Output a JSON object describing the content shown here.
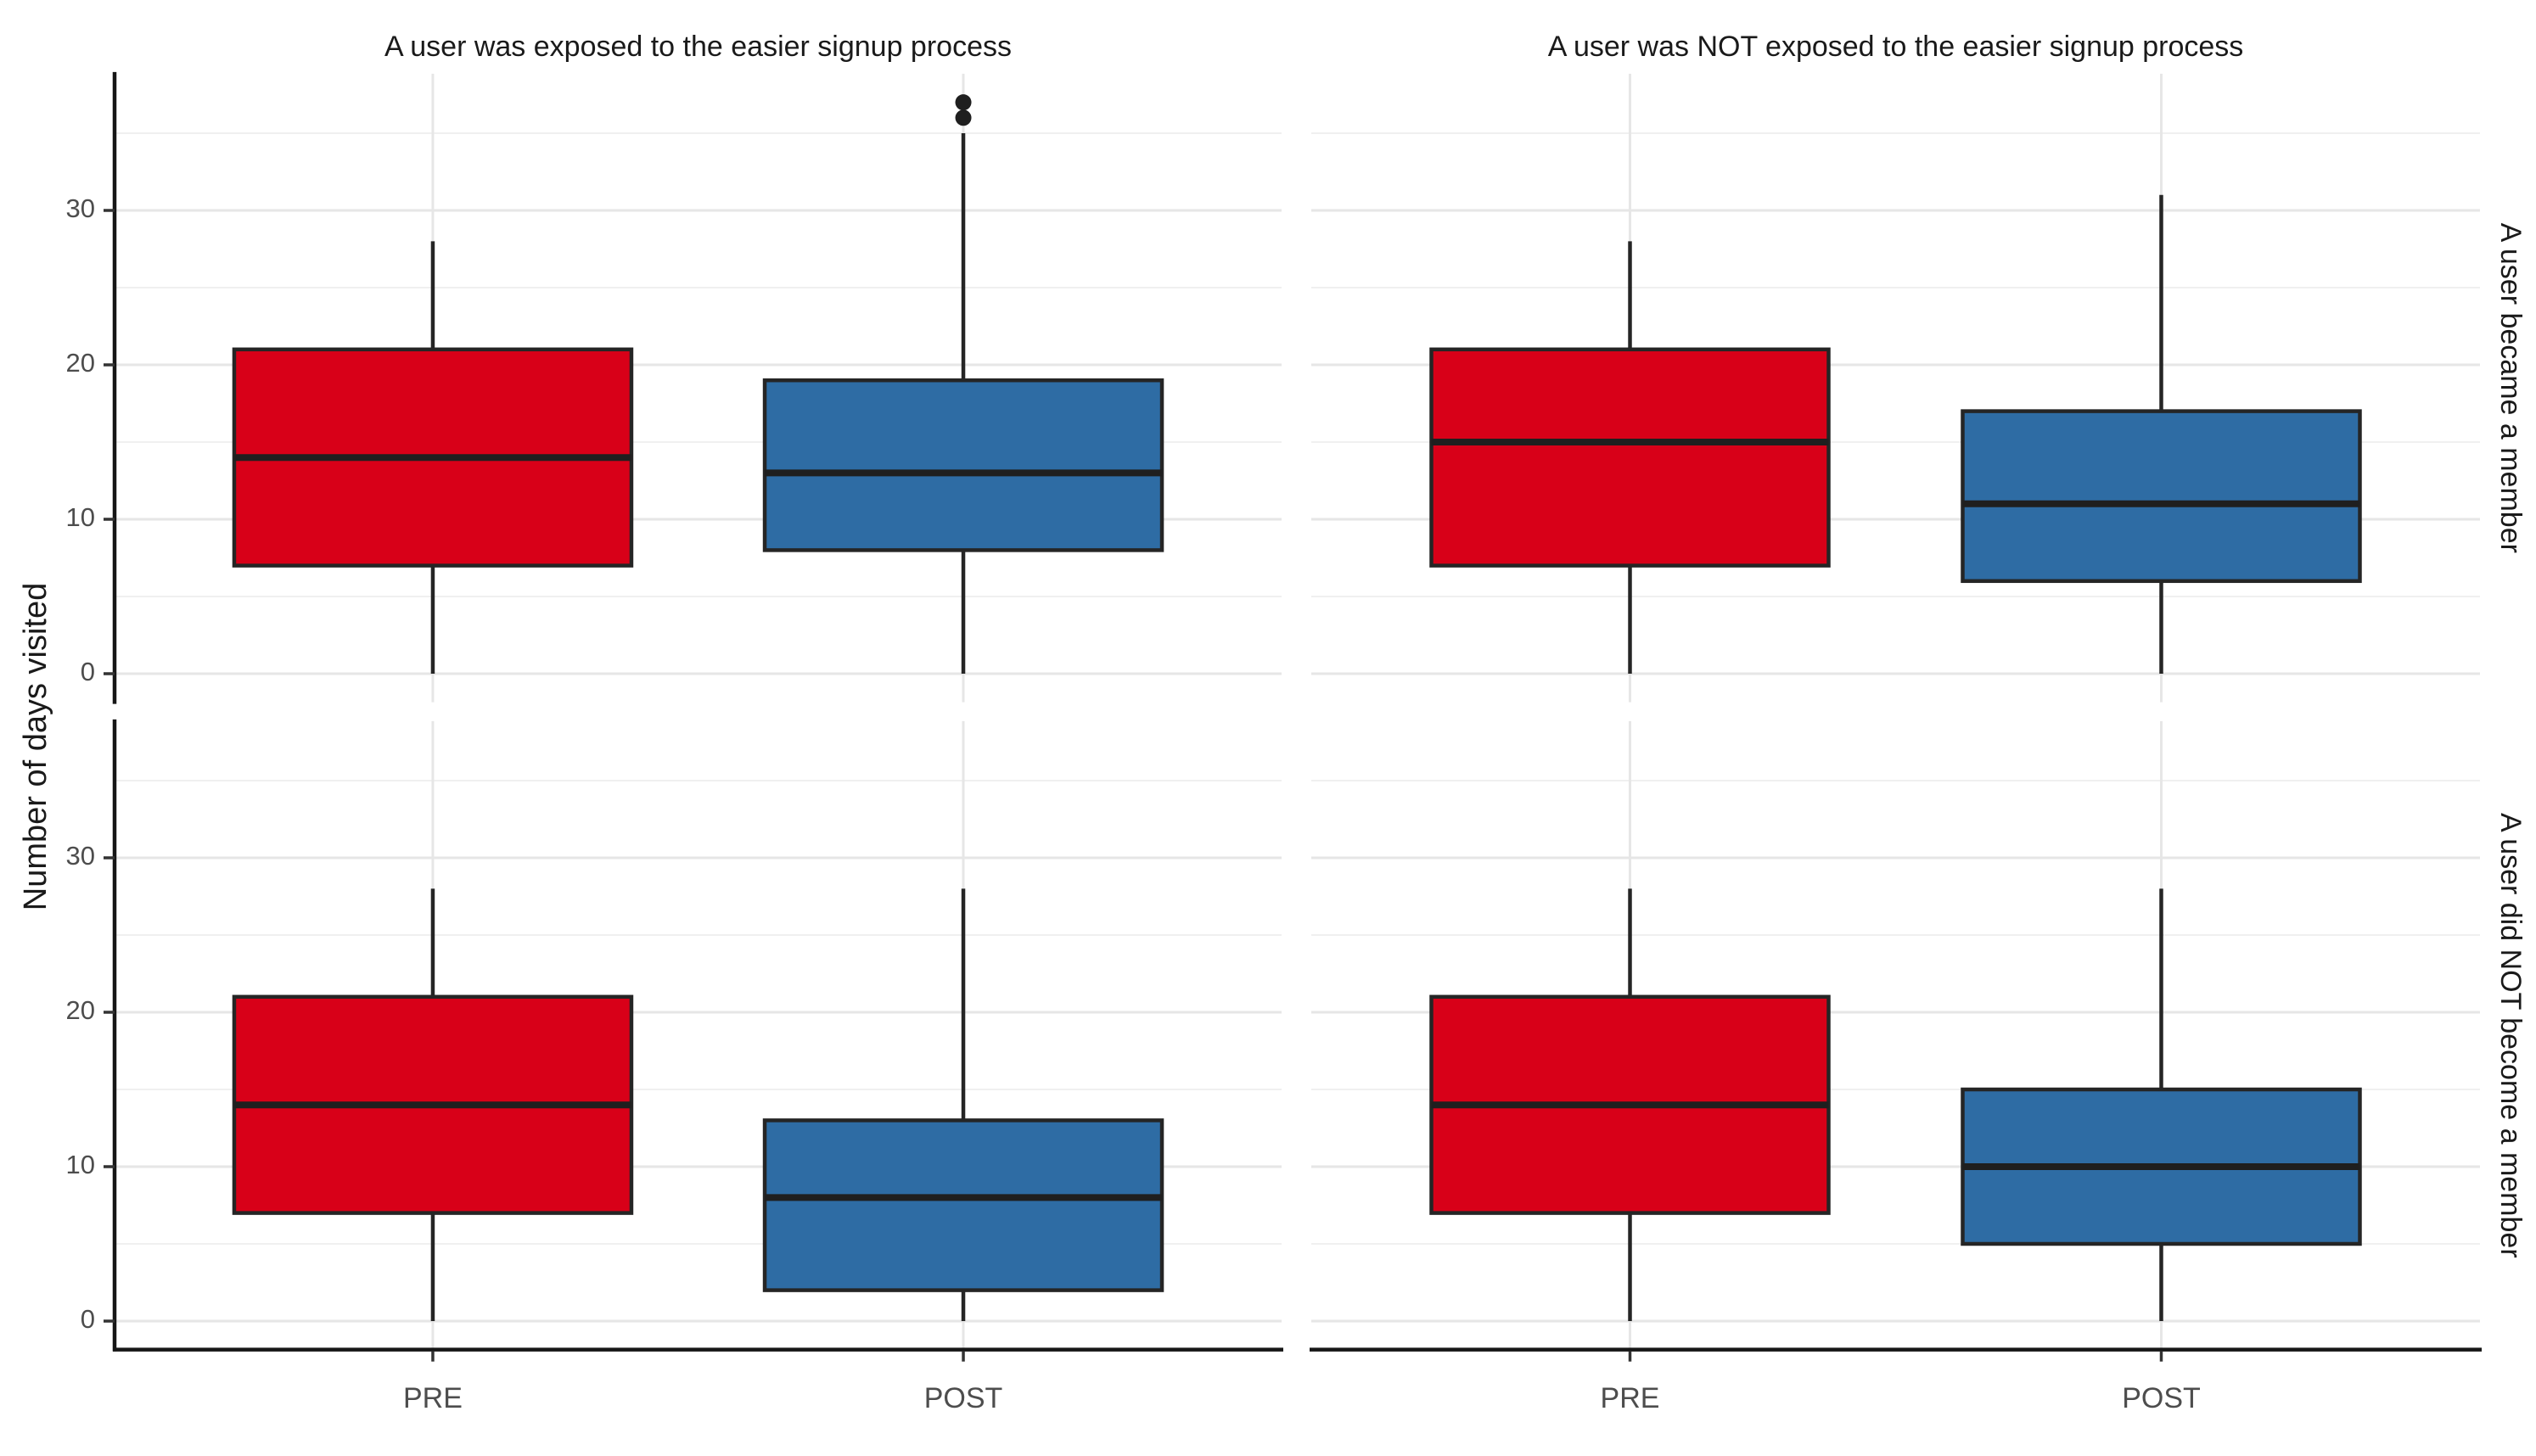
{
  "chart_data": {
    "type": "boxplot",
    "title": "",
    "xlabel": "",
    "ylabel": "Number of days visited",
    "categories": [
      "PRE",
      "POST"
    ],
    "y_ticks": [
      0,
      10,
      20,
      30
    ],
    "y_range": [
      -1.85,
      38.85
    ],
    "y_gridline_step": 5,
    "grid": true,
    "legend": "none",
    "facet_columns": [
      "A user was exposed to the easier signup process",
      "A user was NOT exposed to the easier signup process"
    ],
    "facet_rows": [
      "A user became a member",
      "A user did NOT become a member"
    ],
    "category_colors": {
      "PRE": "#D80018",
      "POST": "#2E6CA4"
    },
    "panels": [
      {
        "row": 0,
        "col": 0,
        "boxes": [
          {
            "category": "PRE",
            "whisker_low": 0,
            "q1": 7,
            "median": 14,
            "q3": 21,
            "whisker_high": 28,
            "outliers": []
          },
          {
            "category": "POST",
            "whisker_low": 0,
            "q1": 8,
            "median": 13,
            "q3": 19,
            "whisker_high": 35,
            "outliers": [
              36,
              37
            ]
          }
        ]
      },
      {
        "row": 0,
        "col": 1,
        "boxes": [
          {
            "category": "PRE",
            "whisker_low": 0,
            "q1": 7,
            "median": 15,
            "q3": 21,
            "whisker_high": 28,
            "outliers": []
          },
          {
            "category": "POST",
            "whisker_low": 0,
            "q1": 6,
            "median": 11,
            "q3": 17,
            "whisker_high": 31,
            "outliers": []
          }
        ]
      },
      {
        "row": 1,
        "col": 0,
        "boxes": [
          {
            "category": "PRE",
            "whisker_low": 0,
            "q1": 7,
            "median": 14,
            "q3": 21,
            "whisker_high": 28,
            "outliers": []
          },
          {
            "category": "POST",
            "whisker_low": 0,
            "q1": 2,
            "median": 8,
            "q3": 13,
            "whisker_high": 28,
            "outliers": []
          }
        ]
      },
      {
        "row": 1,
        "col": 1,
        "boxes": [
          {
            "category": "PRE",
            "whisker_low": 0,
            "q1": 7,
            "median": 14,
            "q3": 21,
            "whisker_high": 28,
            "outliers": []
          },
          {
            "category": "POST",
            "whisker_low": 0,
            "q1": 5,
            "median": 10,
            "q3": 15,
            "whisker_high": 28,
            "outliers": []
          }
        ]
      }
    ],
    "colors": {
      "box_border": "#252525",
      "median_line": "#1F1F1F",
      "whisker": "#252525",
      "outlier": "#1F1F1F",
      "grid_major": "#E6E6E6",
      "grid_minor": "#F0F0F0",
      "axis_line": "#161616",
      "tick_mark": "#333333",
      "tick_label": "#4D4D4D",
      "title_text": "#1A1A1A",
      "background": "#FFFFFF"
    }
  }
}
